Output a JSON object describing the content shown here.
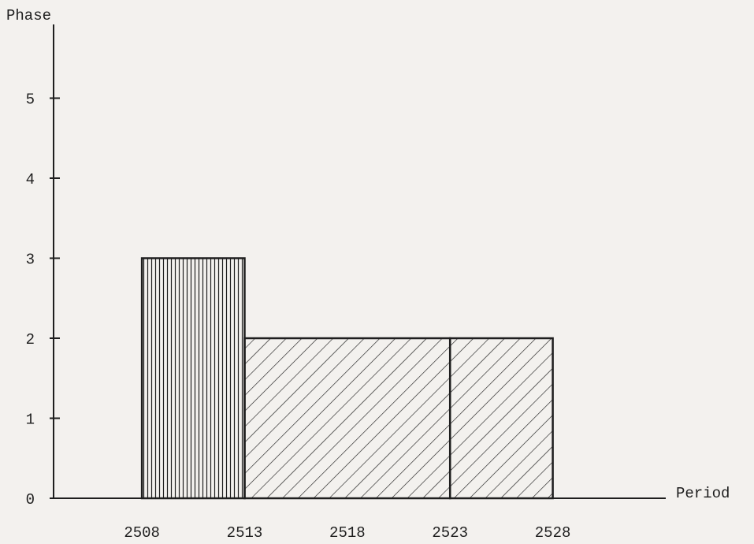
{
  "chart_data": {
    "type": "histogram",
    "xlabel": "Period",
    "ylabel": "Phase",
    "bins": [
      2508,
      2513,
      2523,
      2528
    ],
    "values": [
      3,
      2,
      2
    ],
    "patterns": [
      "vertical",
      "diagonal",
      "diagonal"
    ],
    "color": "#1e1e1e",
    "xlim": [
      2503.7,
      2533.5
    ],
    "xticks": [
      2508,
      2513,
      2518,
      2523,
      2528
    ],
    "ylim": [
      0,
      6
    ],
    "yticks": [
      0,
      1,
      2,
      3,
      4,
      5
    ]
  }
}
